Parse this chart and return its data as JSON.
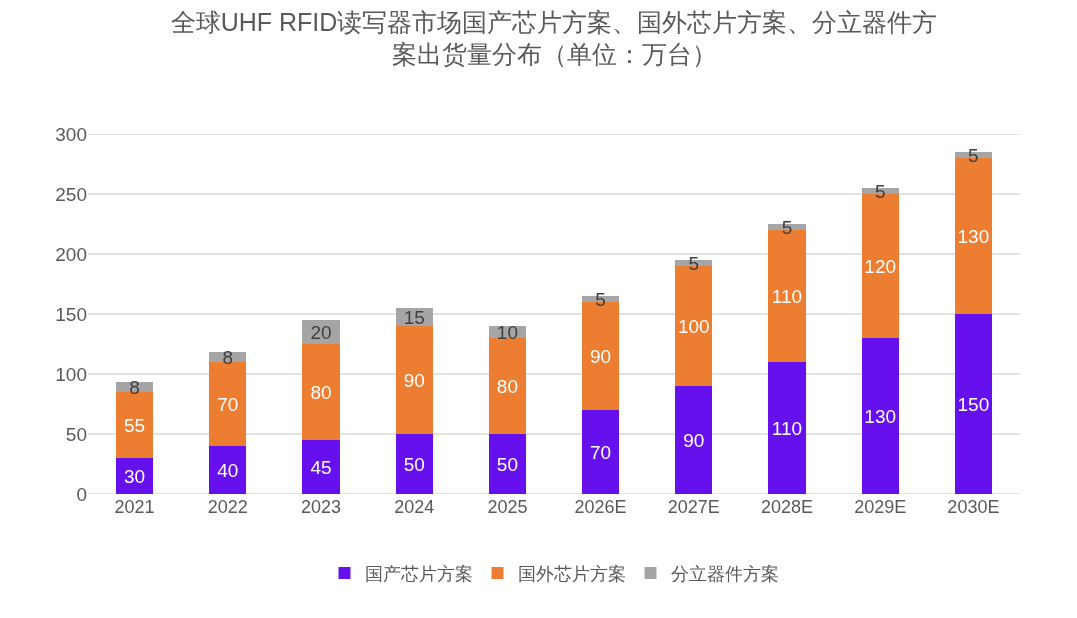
{
  "chart_data": {
    "type": "bar",
    "title": "全球UHF RFID读写器市场国产芯片方案、国外芯片方案、分立器件方案出货量分布（单位：万台）",
    "categories": [
      "2021",
      "2022",
      "2023",
      "2024",
      "2025",
      "2026E",
      "2027E",
      "2028E",
      "2029E",
      "2030E"
    ],
    "series": [
      {
        "name": "国产芯片方案",
        "color": "#6610ee",
        "values": [
          30,
          40,
          45,
          50,
          50,
          70,
          90,
          110,
          130,
          150
        ]
      },
      {
        "name": "国外芯片方案",
        "color": "#ed7d31",
        "values": [
          55,
          70,
          80,
          90,
          80,
          90,
          100,
          110,
          120,
          130
        ]
      },
      {
        "name": "分立器件方案",
        "color": "#a5a5a5",
        "values": [
          8,
          8,
          20,
          15,
          10,
          5,
          5,
          5,
          5,
          5
        ]
      }
    ],
    "stacked": true,
    "ylim": [
      0,
      300
    ],
    "yticks": [
      0,
      50,
      100,
      150,
      200,
      250,
      300
    ],
    "grid": "y",
    "legend": "bottom",
    "data_labels": true
  }
}
